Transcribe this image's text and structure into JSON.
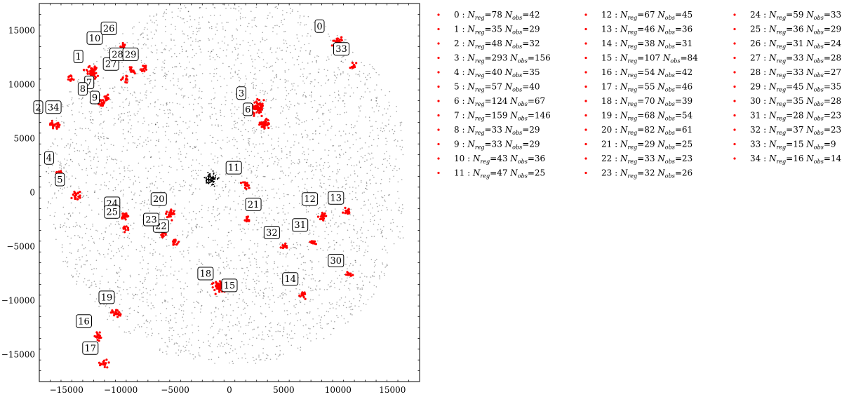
{
  "chart_data": {
    "type": "scatter",
    "title": "",
    "xlabel": "",
    "ylabel": "",
    "xlim": [
      -17500,
      17500
    ],
    "ylim": [
      -17500,
      17500
    ],
    "xticks": [
      -15000,
      -10000,
      -5000,
      0,
      5000,
      10000,
      15000
    ],
    "yticks": [
      -15000,
      -10000,
      -5000,
      0,
      5000,
      10000,
      15000
    ],
    "xtick_labels": [
      "−15000",
      "−10000",
      "−5000",
      "0",
      "5000",
      "10000",
      "15000"
    ],
    "ytick_labels": [
      "−15000",
      "−10000",
      "−5000",
      "0",
      "5000",
      "10000",
      "15000"
    ],
    "grid": false,
    "legend_placement": "outside-right, three columns",
    "colors": {
      "background_points": "#000000",
      "cluster_points": "#ff0000",
      "box_edge": "#000000"
    },
    "background_series": {
      "name": "",
      "description_region": {
        "x_range": [
          -17500,
          16000
        ],
        "y_range": [
          -17500,
          17500
        ],
        "center": [
          0,
          1000
        ],
        "radius": 17000
      },
      "dense_spot": [
        -1700,
        1200
      ]
    },
    "clusters": [
      {
        "id": 0,
        "label": "0",
        "x": 9900,
        "y": 14000,
        "n_reg": 78,
        "n_obs": 42,
        "label_x": 8300,
        "label_y": 15400
      },
      {
        "id": 1,
        "label": "1",
        "x": -14600,
        "y": 10600,
        "n_reg": 35,
        "n_obs": 29,
        "label_x": -13900,
        "label_y": 12600
      },
      {
        "id": 2,
        "label": "2",
        "x": -16300,
        "y": 6400,
        "n_reg": 48,
        "n_obs": 32,
        "label_x": -17600,
        "label_y": 7900
      },
      {
        "id": 3,
        "label": "3",
        "x": 2700,
        "y": 7900,
        "n_reg": 293,
        "n_obs": 156,
        "label_x": 1100,
        "label_y": 9200
      },
      {
        "id": 4,
        "label": "4",
        "x": -15600,
        "y": 1800,
        "n_reg": 40,
        "n_obs": 35,
        "label_x": -16600,
        "label_y": 3200
      },
      {
        "id": 5,
        "label": "5",
        "x": -14100,
        "y": -300,
        "n_reg": 57,
        "n_obs": 40,
        "label_x": -15600,
        "label_y": 1200
      },
      {
        "id": 6,
        "label": "6",
        "x": 3200,
        "y": 6300,
        "n_reg": 124,
        "n_obs": 67,
        "label_x": 1700,
        "label_y": 7700
      },
      {
        "id": 7,
        "label": "7",
        "x": -12600,
        "y": 11100,
        "n_reg": 159,
        "n_obs": 146,
        "label_x": -12900,
        "label_y": 10200
      },
      {
        "id": 8,
        "label": "8",
        "x": -12200,
        "y": 8600,
        "n_reg": 33,
        "n_obs": 29,
        "label_x": -13500,
        "label_y": 9600
      },
      {
        "id": 9,
        "label": "9",
        "x": -11800,
        "y": 8200,
        "n_reg": 33,
        "n_obs": 29,
        "label_x": -12400,
        "label_y": 8800
      },
      {
        "id": 10,
        "label": "10",
        "x": -11300,
        "y": 8700,
        "n_reg": 43,
        "n_obs": 36,
        "label_x": -12400,
        "label_y": 14300
      },
      {
        "id": 11,
        "label": "11",
        "x": 1500,
        "y": 800,
        "n_reg": 47,
        "n_obs": 25,
        "label_x": 400,
        "label_y": 2300
      },
      {
        "id": 12,
        "label": "12",
        "x": 8600,
        "y": -2200,
        "n_reg": 67,
        "n_obs": 45,
        "label_x": 7400,
        "label_y": -600
      },
      {
        "id": 13,
        "label": "13",
        "x": 10800,
        "y": -1800,
        "n_reg": 46,
        "n_obs": 36,
        "label_x": 9800,
        "label_y": -500
      },
      {
        "id": 14,
        "label": "14",
        "x": 6700,
        "y": -9400,
        "n_reg": 38,
        "n_obs": 31,
        "label_x": 5600,
        "label_y": -8000
      },
      {
        "id": 15,
        "label": "15",
        "x": -1000,
        "y": -8700,
        "n_reg": 107,
        "n_obs": 84,
        "label_x": 0,
        "label_y": -8600
      },
      {
        "id": 16,
        "label": "16",
        "x": -12100,
        "y": -13300,
        "n_reg": 54,
        "n_obs": 42,
        "label_x": -13400,
        "label_y": -11900
      },
      {
        "id": 17,
        "label": "17",
        "x": -11600,
        "y": -15900,
        "n_reg": 55,
        "n_obs": 46,
        "label_x": -12800,
        "label_y": -14400
      },
      {
        "id": 18,
        "label": "18",
        "x": -900,
        "y": -8600,
        "n_reg": 70,
        "n_obs": 39,
        "label_x": -2200,
        "label_y": -7500
      },
      {
        "id": 19,
        "label": "19",
        "x": -10400,
        "y": -11100,
        "n_reg": 68,
        "n_obs": 54,
        "label_x": -11300,
        "label_y": -9700
      },
      {
        "id": 20,
        "label": "20",
        "x": -5400,
        "y": -1900,
        "n_reg": 82,
        "n_obs": 61,
        "label_x": -6500,
        "label_y": -600
      },
      {
        "id": 21,
        "label": "21",
        "x": 1700,
        "y": -2600,
        "n_reg": 29,
        "n_obs": 25,
        "label_x": 2200,
        "label_y": -1100
      },
      {
        "id": 22,
        "label": "22",
        "x": -6100,
        "y": -3900,
        "n_reg": 33,
        "n_obs": 23,
        "label_x": -6300,
        "label_y": -3100
      },
      {
        "id": 23,
        "label": "23",
        "x": -5000,
        "y": -4600,
        "n_reg": 32,
        "n_obs": 26,
        "label_x": -7200,
        "label_y": -2500
      },
      {
        "id": 24,
        "label": "24",
        "x": -9700,
        "y": -2200,
        "n_reg": 59,
        "n_obs": 33,
        "label_x": -10800,
        "label_y": -1000
      },
      {
        "id": 25,
        "label": "25",
        "x": -9600,
        "y": -3300,
        "n_reg": 36,
        "n_obs": 29,
        "label_x": -10800,
        "label_y": -1800
      },
      {
        "id": 26,
        "label": "26",
        "x": -9800,
        "y": 13600,
        "n_reg": 31,
        "n_obs": 24,
        "label_x": -11100,
        "label_y": 15200
      },
      {
        "id": 27,
        "label": "27",
        "x": -9600,
        "y": 10500,
        "n_reg": 33,
        "n_obs": 28,
        "label_x": -10900,
        "label_y": 11900
      },
      {
        "id": 28,
        "label": "28",
        "x": -8900,
        "y": 11300,
        "n_reg": 33,
        "n_obs": 27,
        "label_x": -10300,
        "label_y": 12800
      },
      {
        "id": 29,
        "label": "29",
        "x": -7900,
        "y": 11500,
        "n_reg": 45,
        "n_obs": 35,
        "label_x": -9100,
        "label_y": 12800
      },
      {
        "id": 30,
        "label": "30",
        "x": 11000,
        "y": -7600,
        "n_reg": 35,
        "n_obs": 28,
        "label_x": 9800,
        "label_y": -6300
      },
      {
        "id": 31,
        "label": "31",
        "x": 7700,
        "y": -4600,
        "n_reg": 28,
        "n_obs": 23,
        "label_x": 6500,
        "label_y": -3000
      },
      {
        "id": 32,
        "label": "32",
        "x": 5000,
        "y": -5000,
        "n_reg": 37,
        "n_obs": 23,
        "label_x": 3900,
        "label_y": -3700
      },
      {
        "id": 33,
        "label": "33",
        "x": 11400,
        "y": 11700,
        "n_reg": 15,
        "n_obs": 9,
        "label_x": 10300,
        "label_y": 13300
      },
      {
        "id": 34,
        "label": "34",
        "x": -15900,
        "y": 6200,
        "n_reg": 16,
        "n_obs": 14,
        "label_x": -16200,
        "label_y": 7900
      }
    ],
    "legend": {
      "columns": 3,
      "entry_format": "{id} : N_reg={n_reg} N_obs={n_obs}",
      "n_symbol": "N",
      "reg_sub": "reg",
      "obs_sub": "obs"
    }
  }
}
